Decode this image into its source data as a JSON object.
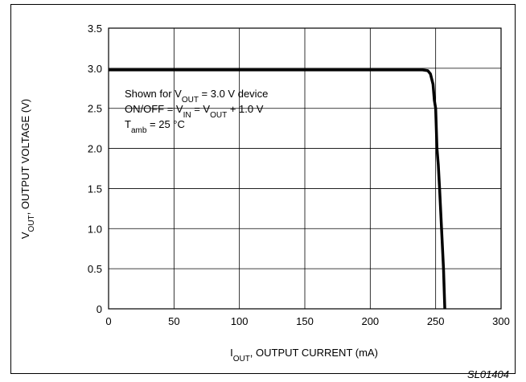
{
  "chart_data": {
    "type": "line",
    "xlabel": {
      "main": "I",
      "sub": "OUT",
      "rest": ", OUTPUT CURRENT (mA)"
    },
    "ylabel": {
      "main": "V",
      "sub": "OUT",
      "rest": ", OUTPUT VOLTAGE (V)"
    },
    "xlim": [
      0,
      300
    ],
    "ylim": [
      0,
      3.5
    ],
    "x_ticks": [
      "0",
      "50",
      "100",
      "150",
      "200",
      "250",
      "300"
    ],
    "y_ticks": [
      "0",
      "0.5",
      "1.0",
      "1.5",
      "2.0",
      "2.5",
      "3.0",
      "3.5"
    ],
    "grid": true,
    "series": [
      {
        "color": "#000000",
        "x": [
          0,
          240,
          244,
          246,
          248,
          249,
          250,
          251,
          252,
          253,
          256,
          257
        ],
        "y": [
          2.98,
          2.98,
          2.97,
          2.93,
          2.8,
          2.6,
          2.5,
          2.0,
          1.8,
          1.5,
          0.5,
          0.0
        ]
      }
    ],
    "annotations": {
      "line1": {
        "a": "Shown for V",
        "sub": "OUT",
        "b": " = 3.0 V device"
      },
      "line2": {
        "a": "ON/OFF = V",
        "sub1": "IN",
        "b": " = V",
        "sub2": "OUT",
        "c": " + 1.0 V"
      },
      "line3": {
        "a": "T",
        "sub": "amb",
        "b": " = 25 °C"
      }
    },
    "code_label": "SL01404"
  }
}
